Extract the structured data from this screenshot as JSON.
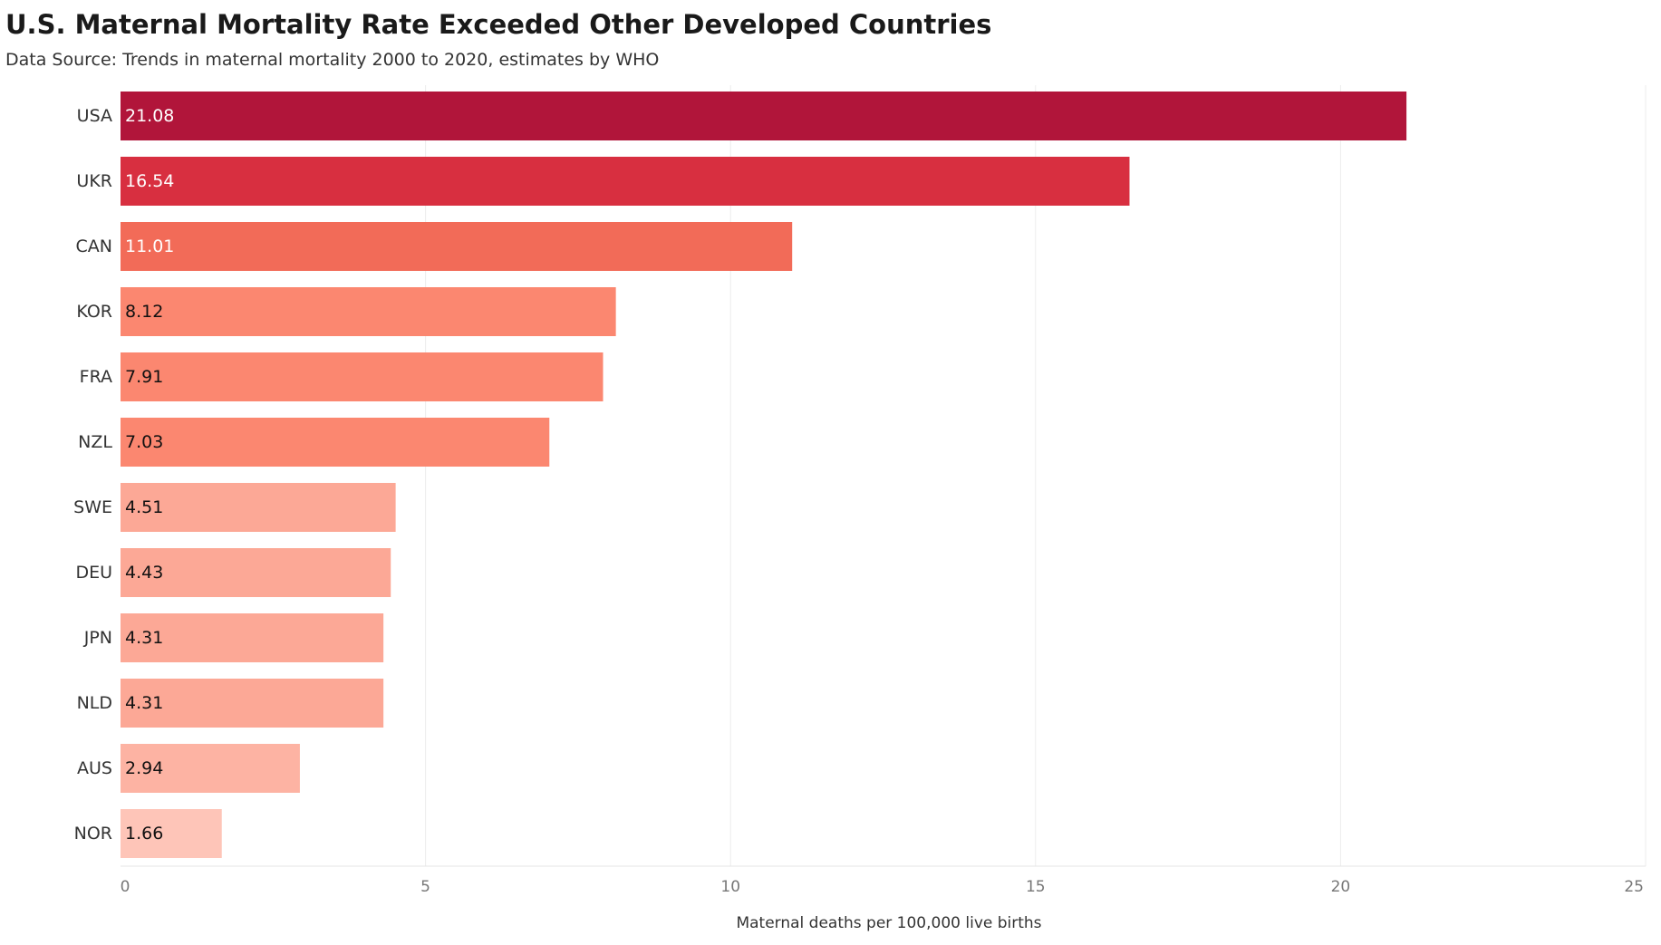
{
  "chart_data": {
    "type": "bar",
    "orientation": "horizontal",
    "title": "U.S. Maternal Mortality Rate Exceeded Other Developed Countries",
    "subtitle": "Data Source: Trends in maternal mortality 2000 to 2020, estimates by WHO",
    "xlabel": "Maternal deaths per 100,000 live births",
    "ylabel": "",
    "categories": [
      "USA",
      "UKR",
      "CAN",
      "KOR",
      "FRA",
      "NZL",
      "SWE",
      "DEU",
      "JPN",
      "NLD",
      "AUS",
      "NOR"
    ],
    "values": [
      21.08,
      16.54,
      11.01,
      8.12,
      7.91,
      7.03,
      4.51,
      4.43,
      4.31,
      4.31,
      2.94,
      1.66
    ],
    "value_labels": [
      "21.08",
      "16.54",
      "11.01",
      "8.12",
      "7.91",
      "7.03",
      "4.51",
      "4.43",
      "4.31",
      "4.31",
      "2.94",
      "1.66"
    ],
    "bar_colors": [
      "#b1153a",
      "#d82f40",
      "#f26b58",
      "#fb8770",
      "#fb8770",
      "#fb8770",
      "#fca896",
      "#fca896",
      "#fca896",
      "#fca896",
      "#fdb3a3",
      "#fec5b8"
    ],
    "value_label_colors": [
      "#ffffff",
      "#ffffff",
      "#ffffff",
      "#111111",
      "#111111",
      "#111111",
      "#111111",
      "#111111",
      "#111111",
      "#111111",
      "#111111",
      "#111111"
    ],
    "xlim": [
      0,
      25
    ],
    "xticks": [
      0,
      5,
      10,
      15,
      20,
      25
    ],
    "xtick_labels": [
      "0",
      "5",
      "10",
      "15",
      "20",
      "25"
    ],
    "grid": true,
    "legend": "none"
  }
}
